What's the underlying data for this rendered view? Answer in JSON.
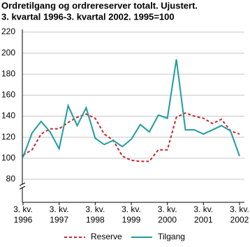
{
  "chart_data": {
    "type": "line",
    "title": "Ordretilgang og ordrereserver totalt. Ujustert.",
    "subtitle": "3. kvartal 1996-3. kvartal 2002. 1995=100",
    "categories": [
      "3. kv. 1996",
      null,
      null,
      null,
      "3. kv. 1997",
      null,
      null,
      null,
      "3. kv. 1998",
      null,
      null,
      null,
      "3. kv. 1999",
      null,
      null,
      null,
      "3. kv. 2000",
      null,
      null,
      null,
      "3. kv. 2001",
      null,
      null,
      null,
      "3. kv. 2002"
    ],
    "series": [
      {
        "name": "Reserve",
        "color": "#c8262c",
        "dashed": true,
        "values": [
          103,
          108,
          123,
          128,
          128,
          134,
          139,
          142,
          138,
          123,
          117,
          102,
          98,
          97,
          97,
          108,
          108,
          139,
          143,
          140,
          138,
          133,
          137,
          126,
          123
        ]
      },
      {
        "name": "Tilgang",
        "color": "#1f9c9e",
        "dashed": false,
        "values": [
          101,
          124,
          135,
          125,
          109,
          150,
          131,
          148,
          119,
          113,
          117,
          111,
          118,
          132,
          125,
          141,
          138,
          194,
          127,
          127,
          123,
          127,
          131,
          126,
          102
        ]
      }
    ],
    "ylim": [
      58,
      220
    ],
    "yticks": [
      80,
      100,
      120,
      140,
      160,
      180,
      200,
      220
    ],
    "grid": true
  }
}
